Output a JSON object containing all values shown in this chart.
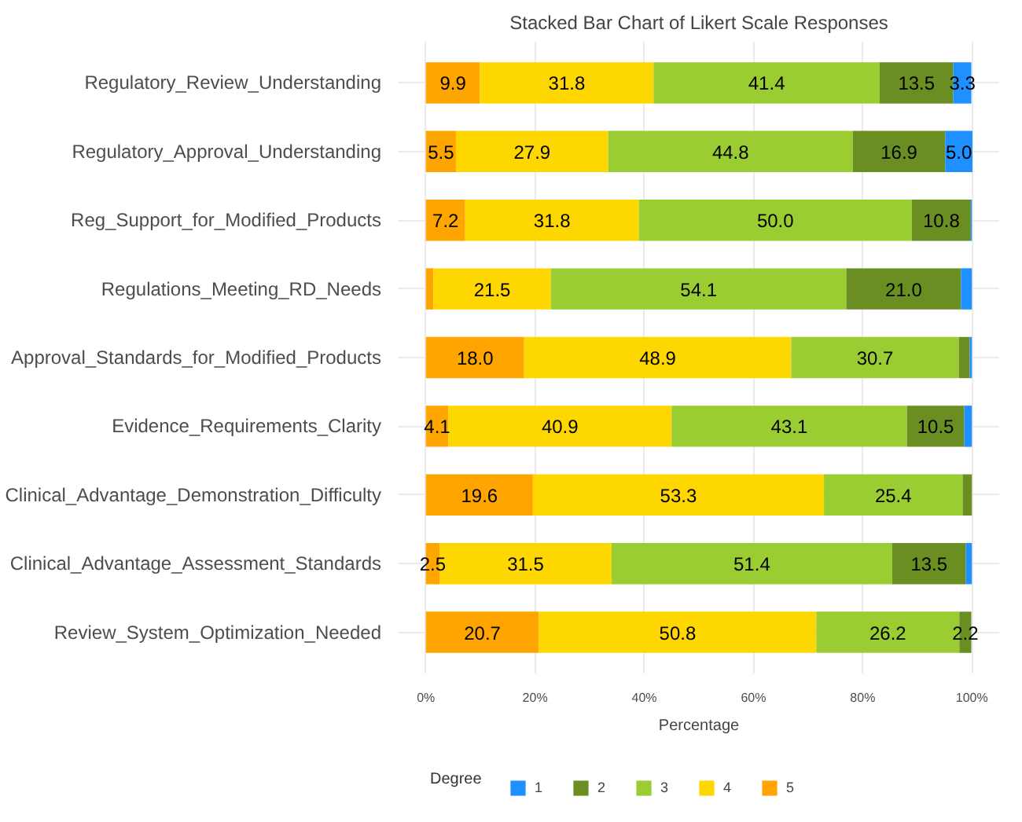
{
  "chart_data": {
    "type": "bar",
    "orientation": "horizontal",
    "stacked": true,
    "title": "Stacked Bar Chart of Likert Scale Responses",
    "xlabel": "Percentage",
    "legend_title": "Degree",
    "categories": [
      "Regulatory_Review_Understanding",
      "Regulatory_Approval_Understanding",
      "Reg_Support_for_Modified_Products",
      "Regulations_Meeting_RD_Needs",
      "Approval_Standards_for_Modified_Products",
      "Evidence_Requirements_Clarity",
      "Clinical_Advantage_Demonstration_Difficulty",
      "Clinical_Advantage_Assessment_Standards",
      "Review_System_Optimization_Needed"
    ],
    "series": [
      {
        "name": "5",
        "color": "#ffa500",
        "values": [
          9.9,
          5.5,
          7.2,
          1.4,
          18.0,
          4.1,
          19.6,
          2.5,
          20.7
        ],
        "value_labels": [
          "9.9",
          "5.5",
          "7.2",
          null,
          "18.0",
          "4.1",
          "19.6",
          "2.5",
          "20.7"
        ]
      },
      {
        "name": "4",
        "color": "#ffd700",
        "values": [
          31.8,
          27.9,
          31.8,
          21.5,
          48.9,
          40.9,
          53.3,
          31.5,
          50.8
        ],
        "value_labels": [
          "31.8",
          "27.9",
          "31.8",
          "21.5",
          "48.9",
          "40.9",
          "53.3",
          "31.5",
          "50.8"
        ]
      },
      {
        "name": "3",
        "color": "#9acd32",
        "values": [
          41.4,
          44.8,
          50.0,
          54.1,
          30.7,
          43.1,
          25.4,
          51.4,
          26.2
        ],
        "value_labels": [
          "41.4",
          "44.8",
          "50.0",
          "54.1",
          "30.7",
          "43.1",
          "25.4",
          "51.4",
          "26.2"
        ]
      },
      {
        "name": "2",
        "color": "#6b8e23",
        "values": [
          13.5,
          16.9,
          10.8,
          21.0,
          2.0,
          10.5,
          1.7,
          13.5,
          2.2
        ],
        "value_labels": [
          "13.5",
          "16.9",
          "10.8",
          "21.0",
          null,
          "10.5",
          null,
          "13.5",
          "2.2"
        ]
      },
      {
        "name": "1",
        "color": "#1e90ff",
        "values": [
          3.3,
          5.0,
          0.2,
          2.0,
          0.4,
          1.4,
          0,
          1.1,
          0
        ],
        "value_labels": [
          "3.3",
          "5.0",
          null,
          null,
          null,
          null,
          null,
          null,
          null
        ]
      }
    ],
    "xlim": [
      -5,
      105
    ],
    "xticks": [
      {
        "value": 0,
        "label": "0%"
      },
      {
        "value": 20,
        "label": "20%"
      },
      {
        "value": 40,
        "label": "40%"
      },
      {
        "value": 60,
        "label": "60%"
      },
      {
        "value": 80,
        "label": "80%"
      },
      {
        "value": 100,
        "label": "100%"
      }
    ],
    "grid": true,
    "legend": "bottom"
  }
}
